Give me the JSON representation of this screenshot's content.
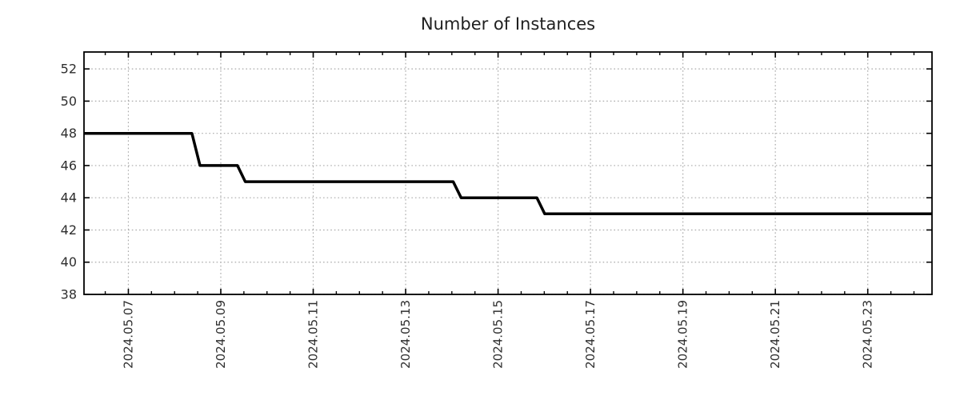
{
  "title": "Number of Instances",
  "colors": {
    "background": "#ffffff",
    "line": "#000000",
    "axis": "#000000",
    "grid": "#aaaaaa",
    "tick_text": "#2e2e2e",
    "title_text": "#202020"
  },
  "chart_data": {
    "type": "line",
    "title": "Number of Instances",
    "xlabel": "",
    "ylabel": "",
    "legend": "none",
    "grid": {
      "style": "dotted",
      "on_major_x": true,
      "on_major_y": true
    },
    "x_axis": {
      "unit": "days_since_2024-05-01",
      "range": [
        5.04,
        23.39
      ],
      "major_ticks": [
        {
          "value": 6,
          "label": "2024.05.07"
        },
        {
          "value": 8,
          "label": "2024.05.09"
        },
        {
          "value": 10,
          "label": "2024.05.11"
        },
        {
          "value": 12,
          "label": "2024.05.13"
        },
        {
          "value": 14,
          "label": "2024.05.15"
        },
        {
          "value": 16,
          "label": "2024.05.17"
        },
        {
          "value": 18,
          "label": "2024.05.19"
        },
        {
          "value": 20,
          "label": "2024.05.21"
        },
        {
          "value": 22,
          "label": "2024.05.23"
        }
      ],
      "minor_tick_step": 0.5,
      "tick_label_rotation_deg": -90
    },
    "y_axis": {
      "range": [
        38,
        53.05
      ],
      "major_ticks": [
        {
          "value": 38,
          "label": "38"
        },
        {
          "value": 40,
          "label": "40"
        },
        {
          "value": 42,
          "label": "42"
        },
        {
          "value": 44,
          "label": "44"
        },
        {
          "value": 46,
          "label": "46"
        },
        {
          "value": 48,
          "label": "48"
        },
        {
          "value": 50,
          "label": "50"
        },
        {
          "value": 52,
          "label": "52"
        }
      ]
    },
    "series": [
      {
        "name": "Number of Instances",
        "color": "#000000",
        "line_width": 3.5,
        "points": [
          {
            "x": 5.04,
            "y": 48,
            "approx_time": "2024-05-06 01:00"
          },
          {
            "x": 7.375,
            "y": 48,
            "approx_time": "2024-05-08 09:00"
          },
          {
            "x": 7.55,
            "y": 46,
            "approx_time": "2024-05-08 13:00"
          },
          {
            "x": 8.36,
            "y": 46,
            "approx_time": "2024-05-09 08:40"
          },
          {
            "x": 8.53,
            "y": 45,
            "approx_time": "2024-05-09 12:45"
          },
          {
            "x": 13.03,
            "y": 45,
            "approx_time": "2024-05-14 00:45"
          },
          {
            "x": 13.2,
            "y": 44,
            "approx_time": "2024-05-14 04:50"
          },
          {
            "x": 14.84,
            "y": 44,
            "approx_time": "2024-05-15 20:10"
          },
          {
            "x": 15.01,
            "y": 43,
            "approx_time": "2024-05-16 00:20"
          },
          {
            "x": 23.39,
            "y": 43,
            "approx_time": "2024-05-24 09:20"
          }
        ]
      }
    ]
  }
}
